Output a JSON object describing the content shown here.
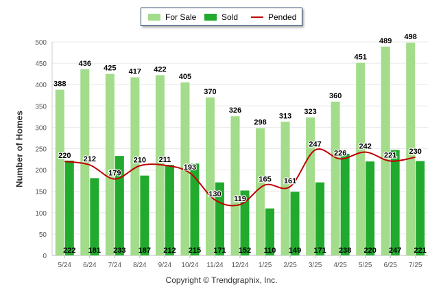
{
  "legend": {
    "for_sale": "For Sale",
    "sold": "Sold",
    "pended": "Pended"
  },
  "footer": {
    "copyright": "Copyright © Trendgraphix, Inc."
  },
  "colors": {
    "for_sale": "#a3dc8a",
    "sold": "#22aa2e",
    "pended": "#c00000",
    "grid": "#e8e8e8",
    "axis_text": "#555555"
  },
  "chart_data": {
    "type": "bar",
    "xlabel": "",
    "ylabel": "Number of Homes",
    "ylim": [
      0,
      500
    ],
    "yticks": [
      0,
      50,
      100,
      150,
      200,
      250,
      300,
      350,
      400,
      450,
      500
    ],
    "grid": true,
    "legend_position": "top-center",
    "categories": [
      "5/24",
      "6/24",
      "7/24",
      "8/24",
      "9/24",
      "10/24",
      "11/24",
      "12/24",
      "1/25",
      "2/25",
      "3/25",
      "4/25",
      "5/25",
      "6/25",
      "7/25"
    ],
    "series": [
      {
        "name": "For Sale",
        "kind": "bar",
        "values": [
          388,
          436,
          425,
          417,
          422,
          405,
          370,
          326,
          298,
          313,
          323,
          360,
          451,
          489,
          498
        ]
      },
      {
        "name": "Sold",
        "kind": "bar",
        "values": [
          222,
          181,
          233,
          187,
          212,
          215,
          171,
          152,
          110,
          149,
          171,
          238,
          220,
          247,
          221
        ]
      },
      {
        "name": "Pended",
        "kind": "line",
        "values": [
          220,
          212,
          179,
          210,
          211,
          193,
          130,
          119,
          165,
          161,
          247,
          226,
          242,
          221,
          230
        ]
      }
    ]
  }
}
